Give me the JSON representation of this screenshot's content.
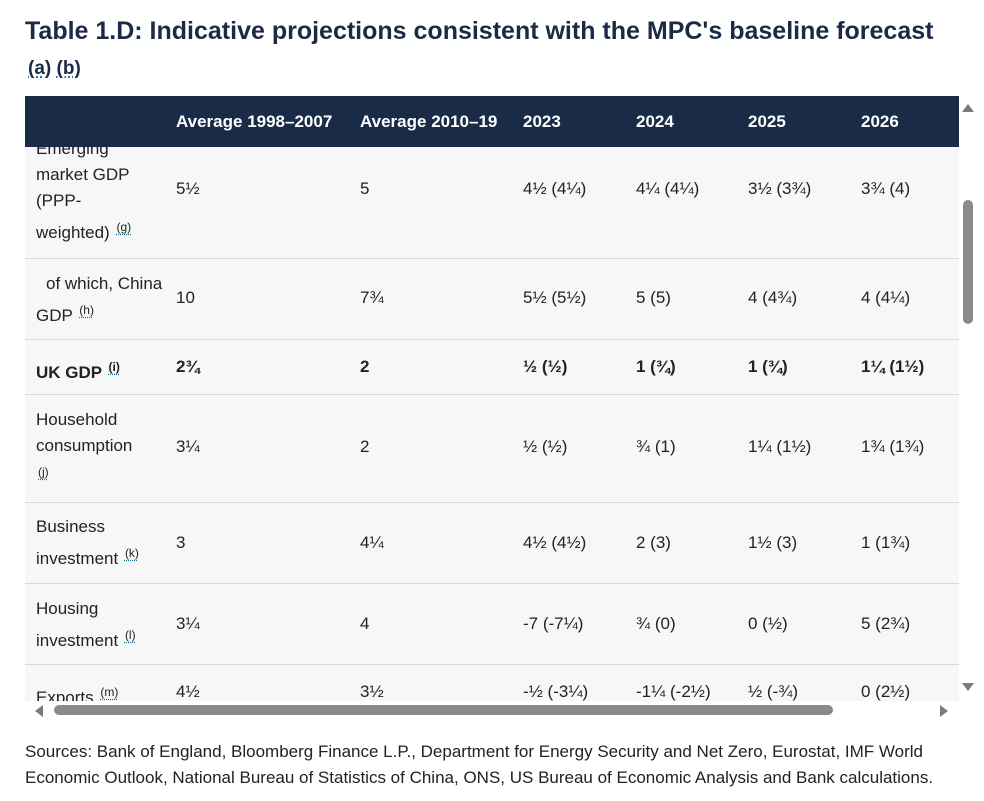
{
  "title": {
    "text": "Table 1.D: Indicative projections consistent with the MPC's baseline forecast",
    "footnotes": [
      "(a)",
      "(b)"
    ]
  },
  "table": {
    "columns": [
      "",
      "Average 1998–2007",
      "Average 2010–19",
      "2023",
      "2024",
      "2025",
      "2026"
    ],
    "rows": [
      {
        "label": "Emerging market GDP (PPP-weighted)",
        "footnote": "(g)",
        "bold": false,
        "values": [
          "5½",
          "5",
          "4½ (4¼)",
          "4¼ (4¼)",
          "3½ (3¾)",
          "3¾ (4)"
        ]
      },
      {
        "label": "of which, China GDP",
        "footnote": "(h)",
        "bold": false,
        "values": [
          "10",
          "7¾",
          "5½ (5½)",
          "5 (5)",
          "4 (4¾)",
          "4 (4¼)"
        ]
      },
      {
        "label": "UK GDP",
        "footnote": "(i)",
        "bold": true,
        "values": [
          "2¾",
          "2",
          "½ (½)",
          "1 (¾)",
          "1 (¾)",
          "1¼ (1½)"
        ]
      },
      {
        "label": "Household consumption",
        "footnote": "(j)",
        "bold": false,
        "values": [
          "3¼",
          "2",
          "½ (½)",
          "¾ (1)",
          "1¼ (1½)",
          "1¾ (1¾)"
        ]
      },
      {
        "label": "Business investment",
        "footnote": "(k)",
        "bold": false,
        "values": [
          "3",
          "4¼",
          "4½ (4½)",
          "2 (3)",
          "1½ (3)",
          "1 (1¾)"
        ]
      },
      {
        "label": "Housing investment",
        "footnote": "(l)",
        "bold": false,
        "values": [
          "3¼",
          "4",
          "-7 (-7¼)",
          "¾ (0)",
          "0 (½)",
          "5 (2¾)"
        ]
      },
      {
        "label": "Exports",
        "footnote": "(m)",
        "bold": false,
        "values": [
          "4½",
          "3½",
          "-½ (-3¼)",
          "-1¼ (-2½)",
          "½ (-¾)",
          "0 (2½)"
        ]
      }
    ]
  },
  "sources": "Sources: Bank of England, Bloomberg Finance L.P., Department for Energy Security and Net Zero, Eurostat, IMF World Economic Outlook, National Bureau of Statistics of China, ONS, US Bureau of Economic Analysis and Bank calculations.",
  "scrollbars": {
    "vertical_icons": [
      "arrow-up-icon",
      "arrow-down-icon"
    ],
    "horizontal_icons": [
      "arrow-left-icon",
      "arrow-right-icon"
    ],
    "color": "#8a8a8a"
  },
  "colors": {
    "header_bg": "#1a2b47",
    "title": "#1c2b45",
    "row_bg": "#f7f7f7"
  }
}
